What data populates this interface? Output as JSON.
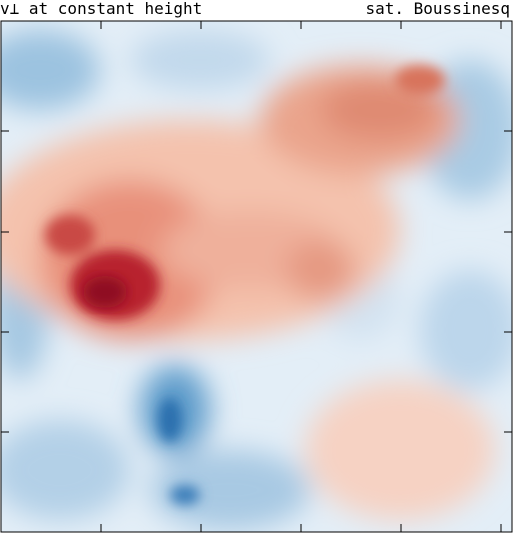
{
  "header": {
    "left": "v⊥ at constant height",
    "right": "sat. Boussinesq"
  }
}
